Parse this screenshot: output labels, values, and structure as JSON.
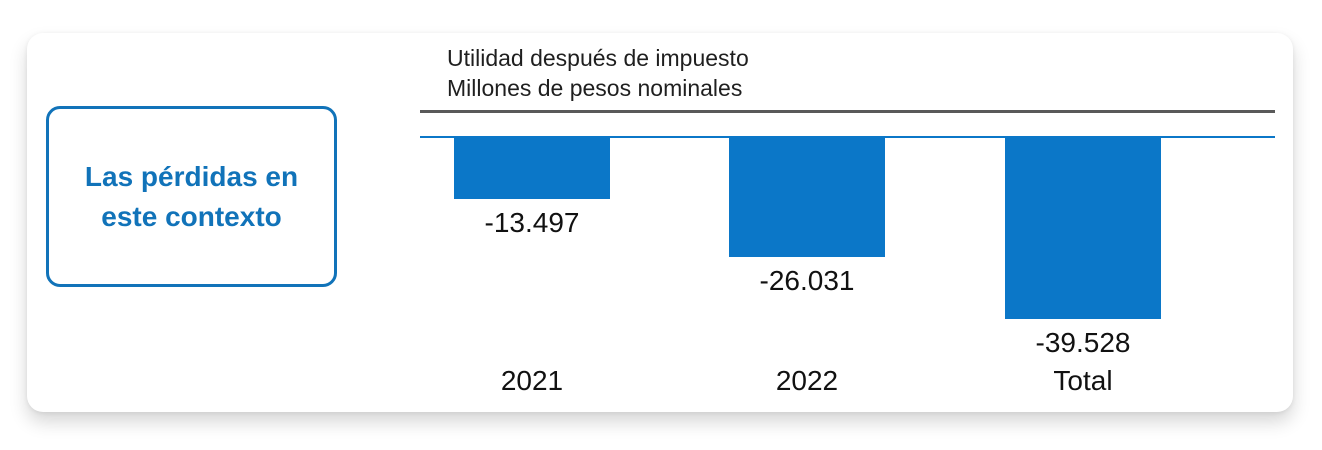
{
  "colors": {
    "bar_blue": "#0b77c8",
    "accent_blue": "#1173b9",
    "divider_gray": "#595959",
    "text_dark": "#1f1f1f"
  },
  "callout": {
    "line1": "Las pérdidas en",
    "line2": "este contexto"
  },
  "chart_data": {
    "type": "bar",
    "title": "Utilidad después de impuesto",
    "subtitle": "Millones de pesos nominales",
    "categories": [
      "2021",
      "2022",
      "Total"
    ],
    "values": [
      -13497,
      -26031,
      -39528
    ],
    "value_labels": [
      "-13.497",
      "-26.031",
      "-39.528"
    ],
    "xlabel": "",
    "ylabel": "Millones de pesos nominales",
    "ylim": [
      -40000,
      0
    ],
    "baseline": 0,
    "grid": false,
    "legend": false,
    "bar_color": "#0b77c8"
  }
}
